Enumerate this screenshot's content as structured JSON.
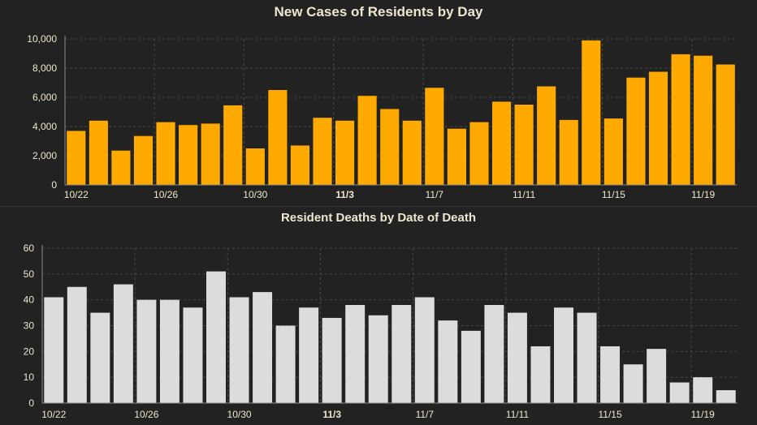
{
  "charts": [
    {
      "type": "bar",
      "title": "New Cases of Residents by Day",
      "color": "#FFAA00",
      "ylim": [
        0,
        10000
      ],
      "yticks": [
        "0",
        "2,000",
        "4,000",
        "6,000",
        "8,000",
        "10,000"
      ],
      "ytick_values": [
        0,
        2000,
        4000,
        6000,
        8000,
        10000
      ],
      "xtick_labels": [
        "10/22",
        "10/26",
        "10/30",
        "11/3",
        "11/7",
        "11/11",
        "11/15",
        "11/19"
      ],
      "xtick_indices": [
        0,
        4,
        8,
        12,
        16,
        20,
        24,
        28
      ],
      "bold_tick": "11/3",
      "grid": true,
      "values": [
        3700,
        4400,
        2350,
        3350,
        4300,
        4100,
        4200,
        5450,
        2500,
        6500,
        2700,
        4600,
        4400,
        6100,
        5200,
        4400,
        6650,
        3850,
        4300,
        5700,
        5500,
        6750,
        4450,
        9900,
        4550,
        7350,
        7750,
        8950,
        8850,
        8250
      ]
    },
    {
      "type": "bar",
      "title": "Resident Deaths by Date of Death",
      "color": "#DCDCDC",
      "ylim": [
        0,
        60
      ],
      "yticks": [
        "0",
        "10",
        "20",
        "30",
        "40",
        "50",
        "60"
      ],
      "ytick_values": [
        0,
        10,
        20,
        30,
        40,
        50,
        60
      ],
      "xtick_labels": [
        "10/22",
        "10/26",
        "10/30",
        "11/3",
        "11/7",
        "11/11",
        "11/15",
        "11/19"
      ],
      "xtick_indices": [
        0,
        4,
        8,
        12,
        16,
        20,
        24,
        28
      ],
      "bold_tick": "11/3",
      "grid": true,
      "values": [
        41,
        45,
        35,
        46,
        40,
        40,
        37,
        51,
        41,
        43,
        30,
        37,
        33,
        38,
        34,
        38,
        41,
        32,
        28,
        38,
        35,
        22,
        37,
        35,
        22,
        15,
        21,
        8,
        10,
        5
      ]
    }
  ],
  "chart_data": [
    {
      "type": "bar",
      "title": "New Cases of Residents by Day",
      "categories": [
        "10/22",
        "10/23",
        "10/24",
        "10/25",
        "10/26",
        "10/27",
        "10/28",
        "10/29",
        "10/30",
        "10/31",
        "11/1",
        "11/2",
        "11/3",
        "11/4",
        "11/5",
        "11/6",
        "11/7",
        "11/8",
        "11/9",
        "11/10",
        "11/11",
        "11/12",
        "11/13",
        "11/14",
        "11/15",
        "11/16",
        "11/17",
        "11/18",
        "11/19",
        "11/20"
      ],
      "values": [
        3700,
        4400,
        2350,
        3350,
        4300,
        4100,
        4200,
        5450,
        2500,
        6500,
        2700,
        4600,
        4400,
        6100,
        5200,
        4400,
        6650,
        3850,
        4300,
        5700,
        5500,
        6750,
        4450,
        9900,
        4550,
        7350,
        7750,
        8950,
        8850,
        8250
      ],
      "xlabel": "",
      "ylabel": "",
      "ylim": [
        0,
        10000
      ],
      "grid": true
    },
    {
      "type": "bar",
      "title": "Resident Deaths by Date of Death",
      "categories": [
        "10/22",
        "10/23",
        "10/24",
        "10/25",
        "10/26",
        "10/27",
        "10/28",
        "10/29",
        "10/30",
        "10/31",
        "11/1",
        "11/2",
        "11/3",
        "11/4",
        "11/5",
        "11/6",
        "11/7",
        "11/8",
        "11/9",
        "11/10",
        "11/11",
        "11/12",
        "11/13",
        "11/14",
        "11/15",
        "11/16",
        "11/17",
        "11/18",
        "11/19",
        "11/20"
      ],
      "values": [
        41,
        45,
        35,
        46,
        40,
        40,
        37,
        51,
        41,
        43,
        30,
        37,
        33,
        38,
        34,
        38,
        41,
        32,
        28,
        38,
        35,
        22,
        37,
        35,
        22,
        15,
        21,
        8,
        10,
        5
      ],
      "xlabel": "",
      "ylabel": "",
      "ylim": [
        0,
        60
      ],
      "grid": true
    }
  ]
}
